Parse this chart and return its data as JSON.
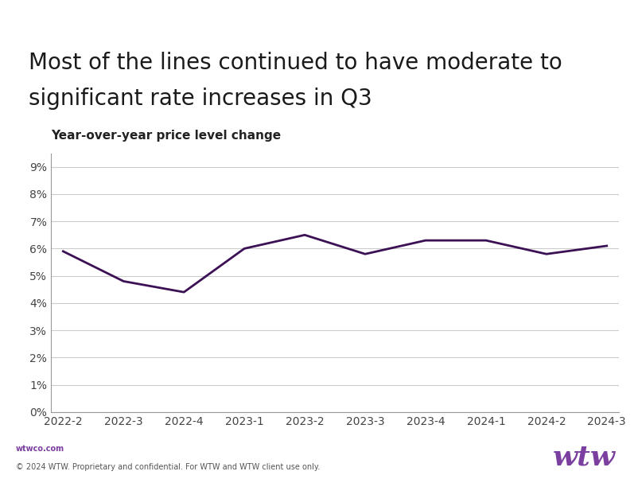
{
  "title_line1": "Most of the lines continued to have moderate to",
  "title_line2": "significant rate increases in Q3",
  "subtitle": "Year-over-year price level change",
  "x_labels": [
    "2022-2",
    "2022-3",
    "2022-4",
    "2023-1",
    "2023-2",
    "2023-3",
    "2023-4",
    "2024-1",
    "2024-2",
    "2024-3"
  ],
  "y_values": [
    0.059,
    0.048,
    0.044,
    0.06,
    0.065,
    0.058,
    0.063,
    0.063,
    0.058,
    0.061
  ],
  "line_color": "#3b1054",
  "line_width": 2.0,
  "y_ticks": [
    0.0,
    0.01,
    0.02,
    0.03,
    0.04,
    0.05,
    0.06,
    0.07,
    0.08,
    0.09
  ],
  "y_tick_labels": [
    "0%",
    "1%",
    "2%",
    "3%",
    "4%",
    "5%",
    "6%",
    "7%",
    "8%",
    "9%"
  ],
  "ylim": [
    0,
    0.095
  ],
  "background_color": "#ffffff",
  "footer_bg": "#e0e0e0",
  "footer_text1": "wtwco.com",
  "footer_text2": "© 2024 WTW. Proprietary and confidential. For WTW and WTW client use only.",
  "footer_color1": "#7b3fa0",
  "footer_color2": "#555555",
  "wtw_logo_color": "#7b3fa0",
  "title_fontsize": 20,
  "subtitle_fontsize": 11,
  "tick_fontsize": 10,
  "grid_color": "#cccccc",
  "title_color": "#1a1a1a",
  "left_spine_color": "#999999",
  "bottom_spine_color": "#999999"
}
